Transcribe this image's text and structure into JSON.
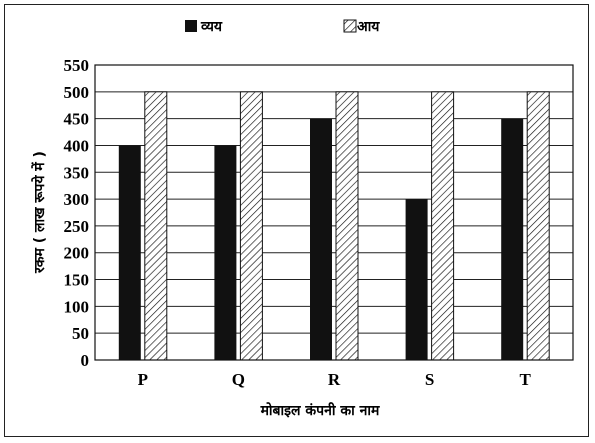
{
  "chart_data": {
    "type": "bar",
    "categories": [
      "P",
      "Q",
      "R",
      "S",
      "T"
    ],
    "series": [
      {
        "name": "व्यय",
        "values": [
          400,
          400,
          450,
          300,
          450
        ],
        "fill": "solid",
        "color": "#111111"
      },
      {
        "name": "आय",
        "values": [
          500,
          500,
          500,
          500,
          500
        ],
        "fill": "hatch",
        "color": "#111111"
      }
    ],
    "xlabel": "मोबाइल कंपनी का नाम",
    "ylabel": "रकम ( लाख रूपये में )",
    "ylim": [
      0,
      550
    ],
    "yticks": [
      0,
      50,
      100,
      150,
      200,
      250,
      300,
      350,
      400,
      450,
      500,
      550
    ],
    "grid": true,
    "legend_position": "top"
  }
}
